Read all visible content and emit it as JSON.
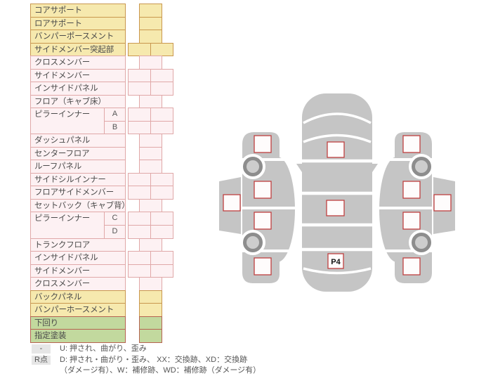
{
  "table": {
    "rows": [
      {
        "label": "コアサポート",
        "zone": "yellow",
        "cells": "single"
      },
      {
        "label": "ロアサポート",
        "zone": "yellow",
        "cells": "single"
      },
      {
        "label": "バンパーポースメント",
        "zone": "yellow",
        "cells": "single"
      },
      {
        "label": "サイドメンバー突起部",
        "zone": "yellow",
        "cells": "double"
      },
      {
        "label": "クロスメンバー",
        "zone": "pink",
        "cells": "single"
      },
      {
        "label": "サイドメンバー",
        "zone": "pink",
        "cells": "double"
      },
      {
        "label": "インサイドパネル",
        "zone": "pink",
        "cells": "double"
      },
      {
        "label": "フロア（キャブ床）",
        "zone": "pink",
        "cells": "single"
      },
      {
        "label": "ピラーインナー",
        "rowspan": 2,
        "sub": "A",
        "zone": "pink",
        "cells": "double"
      },
      {
        "sub": "B",
        "zone": "pink",
        "cells": "double"
      },
      {
        "label": "ダッシュパネル",
        "zone": "pink",
        "cells": "single"
      },
      {
        "label": "センターフロア",
        "zone": "pink",
        "cells": "single"
      },
      {
        "label": "ルーフパネル",
        "zone": "pink",
        "cells": "single"
      },
      {
        "label": "サイドシルインナー",
        "zone": "pink",
        "cells": "double"
      },
      {
        "label": "フロアサイドメンバー",
        "zone": "pink",
        "cells": "double"
      },
      {
        "label": "セットバック（キャブ背）",
        "zone": "pink",
        "cells": "single"
      },
      {
        "label": "ピラーインナー",
        "rowspan": 2,
        "sub": "C",
        "zone": "pink",
        "cells": "double"
      },
      {
        "sub": "D",
        "zone": "pink",
        "cells": "double"
      },
      {
        "label": "トランクフロア",
        "zone": "pink",
        "cells": "single"
      },
      {
        "label": "インサイドパネル",
        "zone": "pink",
        "cells": "double"
      },
      {
        "label": "サイドメンバー",
        "zone": "pink",
        "cells": "double"
      },
      {
        "label": "クロスメンバー",
        "zone": "pink",
        "cells": "single"
      },
      {
        "label": "バックパネル",
        "zone": "yellow",
        "cells": "single"
      },
      {
        "label": "バンパーホースメント",
        "zone": "yellow",
        "cells": "single"
      },
      {
        "label": "下回り",
        "zone": "green",
        "cells": "single"
      },
      {
        "label": "指定塗装",
        "zone": "green",
        "cells": "single"
      }
    ]
  },
  "legend": {
    "items": [
      {
        "badge": "-",
        "text": "U: 押され、曲がり、歪み"
      },
      {
        "badge": "R点",
        "text": "D: 押され・曲がり・歪み、 XX：交換跡、XD：交換跡",
        "text2": "（ダメージ有）、W：補修跡、WD：補修跡（ダメージ有）"
      }
    ]
  },
  "diagram": {
    "rear_marker_label": "P4"
  },
  "colors": {
    "zone_yellow_bg": "#f6e9ae",
    "zone_yellow_border": "#c9974e",
    "zone_pink_bg": "#fdf1f3",
    "zone_pink_border": "#e0a8a8",
    "zone_green_bg": "#c2d99e",
    "zone_green_border": "#b66352",
    "car_body": "#c5c5c5",
    "wheel_ring": "#8d8d8d",
    "wheel_hub": "#cdcdcd",
    "marker_border": "#bf4040",
    "legend_badge_bg": "#e6e6e6"
  }
}
